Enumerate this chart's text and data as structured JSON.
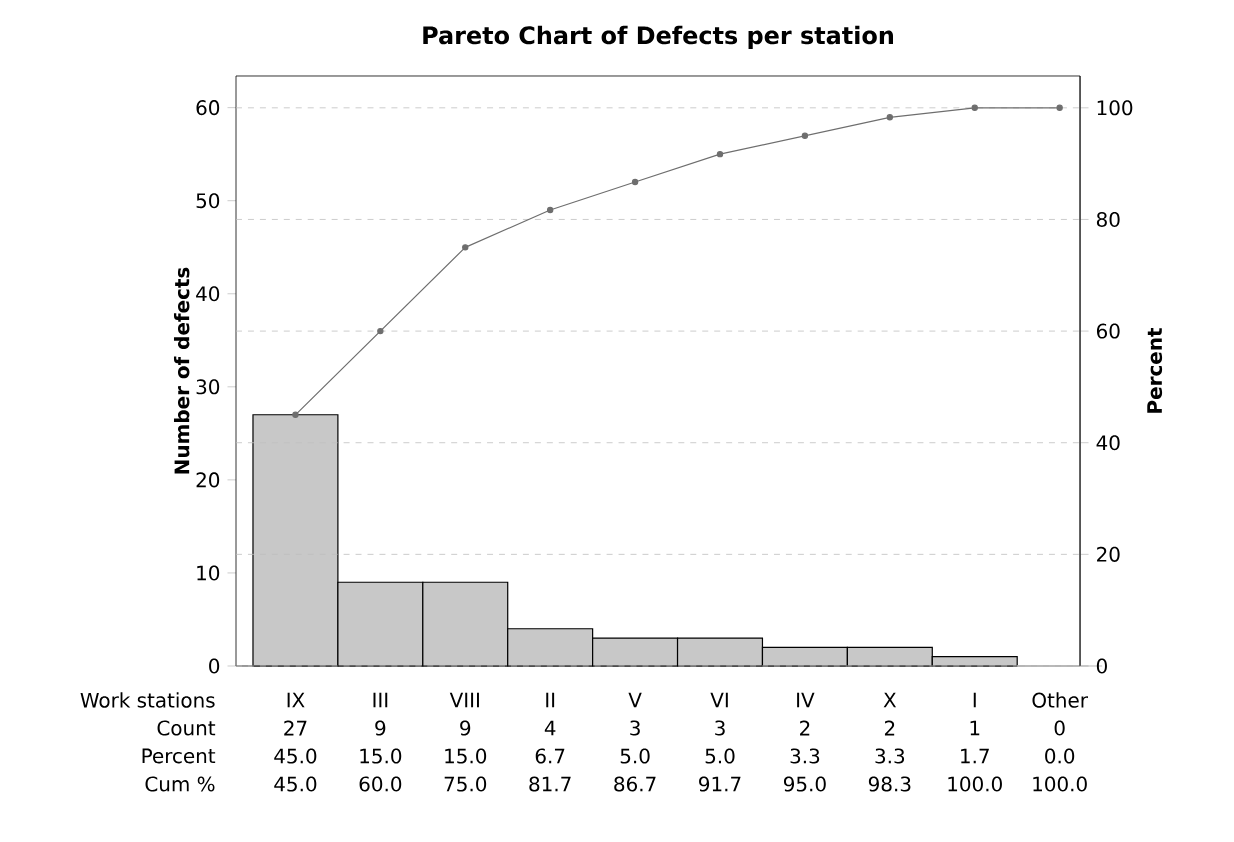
{
  "chart_data": {
    "type": "bar",
    "title": "Pareto Chart of Defects per station",
    "xlabel": "Work stations",
    "ylabel": "Number of defects",
    "y2label": "Percent",
    "categories": [
      "IX",
      "III",
      "VIII",
      "II",
      "V",
      "VI",
      "IV",
      "X",
      "I",
      "Other"
    ],
    "series": [
      {
        "color": "#c8c8c8",
        "values": [
          27,
          9,
          9,
          4,
          3,
          3,
          2,
          2,
          1,
          0
        ],
        "value_labels": [
          "27",
          "9",
          "9",
          "4",
          "3",
          "3",
          "2",
          "2",
          "1",
          "0"
        ]
      },
      {
        "type": "line",
        "axis": "y2",
        "color": "#6e6e6e",
        "marker": "circle",
        "values": [
          45.0,
          60.0,
          75.0,
          81.7,
          86.7,
          91.7,
          95.0,
          98.3,
          100.0,
          100.0
        ],
        "value_labels": [
          "45.0",
          "60.0",
          "75.0",
          "81.7",
          "86.7",
          "91.7",
          "95.0",
          "98.3",
          "100.0",
          "100.0"
        ]
      }
    ],
    "annotations": [
      "Count",
      "Percent",
      "Cum %",
      "45.0",
      "15.0",
      "15.0",
      "6.7",
      "5.0",
      "5.0",
      "3.3",
      "3.3",
      "1.7",
      "0.0"
    ],
    "ylim": [
      0,
      63.4
    ],
    "yticks": [
      0,
      10,
      20,
      30,
      40,
      50,
      60
    ],
    "y2lim": [
      0,
      105.7
    ],
    "y2ticks": [
      0,
      20,
      40,
      60,
      80,
      100
    ],
    "grid": "y2"
  }
}
